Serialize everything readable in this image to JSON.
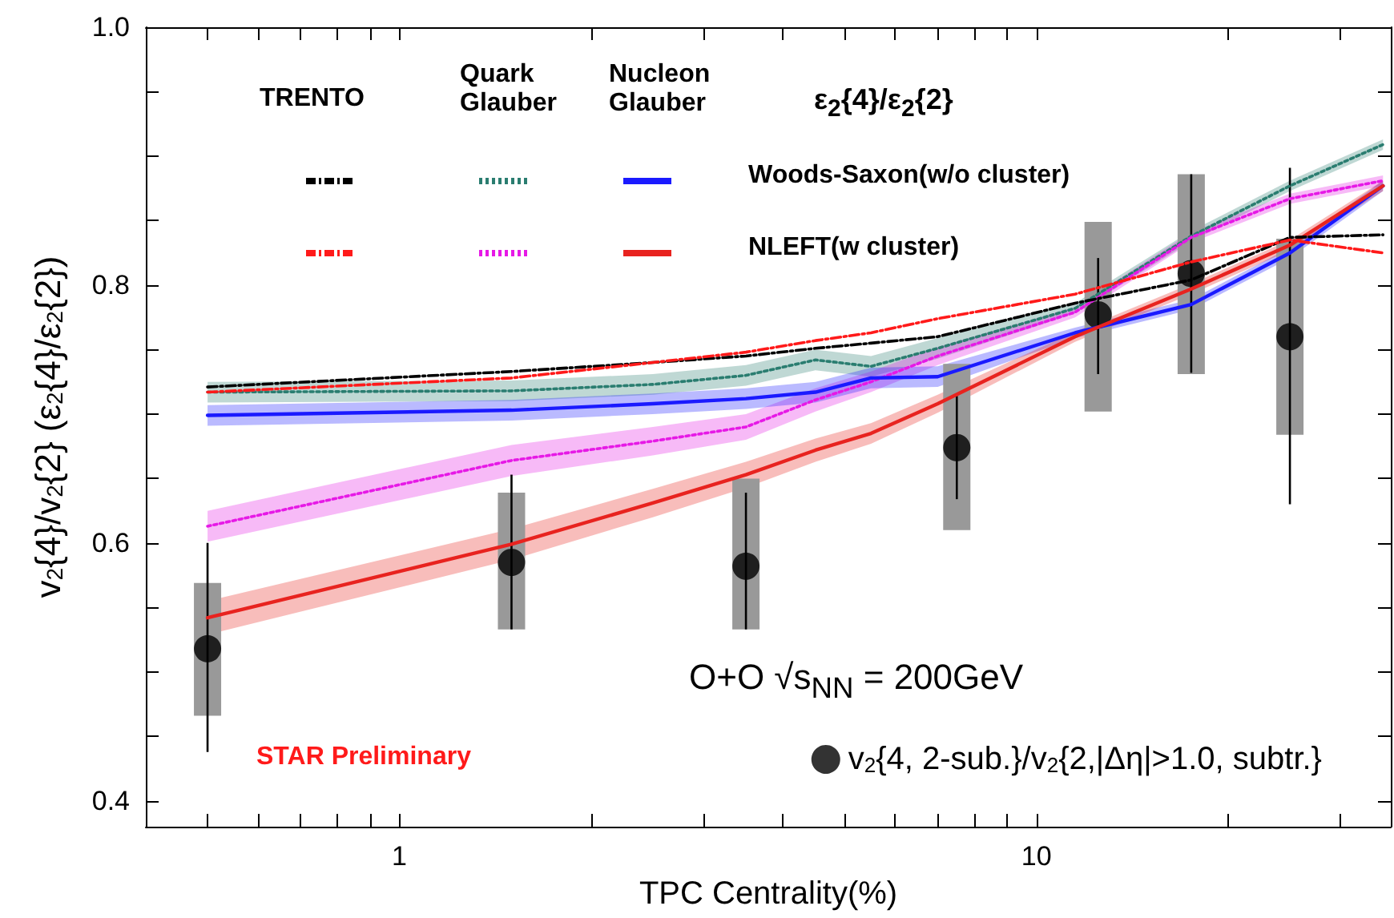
{
  "chart_data": {
    "type": "line",
    "xlabel": "TPC Centrality(%)",
    "ylabel": "v$_{2}${4}/v$_{2}${2} (ε$_{2}${4}/ε$_{2}${2})",
    "log": "x",
    "xlim": [
      0.4,
      36
    ],
    "xticks": [
      {
        "value": 0.5,
        "label": null
      },
      {
        "value": 0.6,
        "label": null
      },
      {
        "value": 0.7,
        "label": null
      },
      {
        "value": 0.8,
        "label": null
      },
      {
        "value": 0.9,
        "label": null
      },
      1,
      {
        "value": 2,
        "label": null
      },
      {
        "value": 3,
        "label": null
      },
      {
        "value": 4,
        "label": null
      },
      {
        "value": 5,
        "label": null
      },
      {
        "value": 6,
        "label": null
      },
      {
        "value": 7,
        "label": null
      },
      {
        "value": 8,
        "label": null
      },
      {
        "value": 9,
        "label": null
      },
      10,
      {
        "value": 20,
        "label": null
      },
      {
        "value": 30,
        "label": null
      }
    ],
    "ylim": [
      0.38,
      1.0
    ],
    "yticks": [
      0.4,
      {
        "value": 0.45,
        "label": null
      },
      {
        "value": 0.5,
        "label": null
      },
      {
        "value": 0.55,
        "label": null
      },
      0.6,
      {
        "value": 0.65,
        "label": null
      },
      {
        "value": 0.7,
        "label": null
      },
      {
        "value": 0.75,
        "label": null
      },
      0.8,
      {
        "value": 0.85,
        "label": null
      },
      {
        "value": 0.9,
        "label": null
      },
      {
        "value": 0.95,
        "label": null
      },
      {
        "value": 1,
        "label": "1.0"
      }
    ],
    "grid": false,
    "legend": "bottom right",
    "annotations": [
      "TRENTO",
      "Quark Glauber",
      "Nucleon Glauber",
      "ε$_{2}${4}/ε$_{2}${2}",
      "Woods-Saxon(w/o cluster)",
      "NLEFT(w cluster)",
      "O+O √s$_{NN}$ = 200GeV",
      "STAR Preliminary"
    ],
    "series": [
      {
        "color": "#000000",
        "line_style": "dashed",
        "x": [
          0.5,
          1.5,
          2.5,
          3.5,
          4.5,
          5.5,
          7,
          11.5,
          17.5,
          25,
          35
        ],
        "values": [
          0.721,
          0.733,
          0.74,
          0.745,
          0.751,
          0.755,
          0.76,
          0.786,
          0.804,
          0.837,
          0.839
        ]
      },
      {
        "color": "#ff1a1a",
        "line_style": "dashed",
        "x": [
          0.5,
          1.5,
          2.5,
          3.5,
          4.5,
          5.5,
          7,
          11.5,
          17.5,
          25,
          35
        ],
        "values": [
          0.717,
          0.728,
          0.74,
          0.748,
          0.757,
          0.763,
          0.774,
          0.793,
          0.818,
          0.835,
          0.825
        ]
      },
      {
        "color": "#2a7d70",
        "line_style": "dotted",
        "x": [
          0.5,
          1.5,
          2.5,
          3.5,
          4.5,
          5.5,
          7,
          11.5,
          17.5,
          25,
          35
        ],
        "values": [
          0.717,
          0.718,
          0.723,
          0.73,
          0.742,
          0.737,
          0.751,
          0.782,
          0.838,
          0.877,
          0.909
        ],
        "lower": [
          0.709,
          0.71,
          0.715,
          0.722,
          0.734,
          0.729,
          0.743,
          0.778,
          0.834,
          0.873,
          0.905
        ],
        "upper": [
          0.725,
          0.726,
          0.731,
          0.738,
          0.75,
          0.745,
          0.759,
          0.786,
          0.842,
          0.881,
          0.913
        ]
      },
      {
        "color": "#e619e6",
        "line_style": "dotted",
        "x": [
          0.5,
          1.5,
          2.5,
          3.5,
          4.5,
          5.5,
          7,
          11.5,
          17.5,
          25,
          35
        ],
        "values": [
          0.613,
          0.664,
          0.679,
          0.69,
          0.711,
          0.725,
          0.745,
          0.779,
          0.837,
          0.867,
          0.881
        ],
        "lower": [
          0.601,
          0.652,
          0.668,
          0.68,
          0.702,
          0.717,
          0.738,
          0.775,
          0.833,
          0.863,
          0.877
        ],
        "upper": [
          0.625,
          0.676,
          0.69,
          0.7,
          0.72,
          0.733,
          0.752,
          0.783,
          0.841,
          0.871,
          0.885
        ]
      },
      {
        "color": "#1a1aff",
        "line_style": "solid",
        "x": [
          0.5,
          1.5,
          2.5,
          3.5,
          4.5,
          5.5,
          7,
          11.5,
          17.5,
          25,
          35
        ],
        "values": [
          0.699,
          0.703,
          0.708,
          0.712,
          0.717,
          0.728,
          0.729,
          0.763,
          0.785,
          0.825,
          0.877
        ],
        "lower": [
          0.691,
          0.695,
          0.7,
          0.704,
          0.709,
          0.72,
          0.721,
          0.759,
          0.781,
          0.821,
          0.873
        ],
        "upper": [
          0.707,
          0.711,
          0.716,
          0.72,
          0.725,
          0.736,
          0.737,
          0.767,
          0.789,
          0.829,
          0.881
        ]
      },
      {
        "color": "#e8231f",
        "line_style": "solid",
        "x": [
          0.5,
          1.5,
          2.5,
          3.5,
          4.5,
          5.5,
          7,
          11.5,
          17.5,
          25,
          35
        ],
        "values": [
          0.542,
          0.599,
          0.631,
          0.653,
          0.672,
          0.685,
          0.708,
          0.76,
          0.797,
          0.831,
          0.877
        ],
        "lower": [
          0.529,
          0.587,
          0.62,
          0.643,
          0.663,
          0.677,
          0.701,
          0.756,
          0.793,
          0.827,
          0.873
        ],
        "upper": [
          0.555,
          0.611,
          0.642,
          0.663,
          0.681,
          0.693,
          0.715,
          0.764,
          0.801,
          0.835,
          0.881
        ]
      },
      {
        "type": "bar",
        "color": "#999999",
        "x": [
          0.5,
          1.5,
          3.5,
          7.5,
          12.5,
          17.5,
          25
        ],
        "base": [
          0.466,
          0.533,
          0.533,
          0.61,
          0.702,
          0.731,
          0.684
        ],
        "values": [
          0.103,
          0.106,
          0.117,
          0.129,
          0.147,
          0.155,
          0.152
        ]
      },
      {
        "type": "scatter",
        "name": "v$_{2}${4, 2-sub.}/v$_{2}${2,|Δη|>1.0, subtr.}",
        "color": "#000000",
        "marker": "circle",
        "x": [
          0.5,
          1.5,
          3.5,
          7.5,
          12.5,
          17.5,
          25
        ],
        "values": [
          0.518,
          0.585,
          0.582,
          0.674,
          0.777,
          0.809,
          0.76
        ],
        "errors": [
          [
            0.438,
            0.6
          ],
          [
            0.533,
            0.653
          ],
          [
            0.533,
            0.639
          ],
          [
            0.634,
            0.714
          ],
          [
            0.731,
            0.821
          ],
          [
            0.732,
            0.886
          ],
          [
            0.63,
            0.891
          ]
        ]
      }
    ]
  }
}
